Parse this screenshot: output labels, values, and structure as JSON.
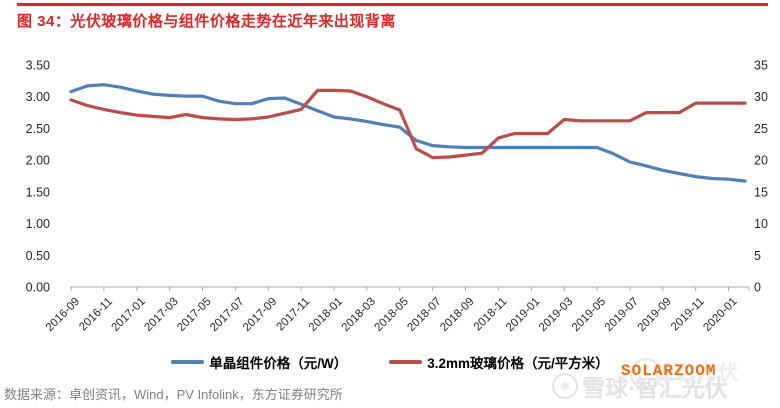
{
  "header": {
    "title": "图 34：光伏玻璃价格与组件价格走势在近年来出现背离",
    "accent_color": "#e62222"
  },
  "chart_data": {
    "type": "line",
    "grid": false,
    "legend_position": "bottom",
    "x": [
      "2016-09",
      "2016-10",
      "2016-11",
      "2016-12",
      "2017-01",
      "2017-02",
      "2017-03",
      "2017-04",
      "2017-05",
      "2017-06",
      "2017-07",
      "2017-08",
      "2017-09",
      "2017-10",
      "2017-11",
      "2017-12",
      "2018-01",
      "2018-02",
      "2018-03",
      "2018-04",
      "2018-05",
      "2018-06",
      "2018-07",
      "2018-08",
      "2018-09",
      "2018-10",
      "2018-11",
      "2018-12",
      "2019-01",
      "2019-02",
      "2019-03",
      "2019-04",
      "2019-05",
      "2019-06",
      "2019-07",
      "2019-08",
      "2019-09",
      "2019-10",
      "2019-11",
      "2019-12",
      "2020-01",
      "2020-02"
    ],
    "x_tick_labels": [
      "2016-09",
      "2016-11",
      "2017-01",
      "2017-03",
      "2017-05",
      "2017-07",
      "2017-09",
      "2017-11",
      "2018-01",
      "2018-03",
      "2018-05",
      "2018-07",
      "2018-09",
      "2018-11",
      "2019-01",
      "2019-03",
      "2019-05",
      "2019-07",
      "2019-09",
      "2019-11",
      "2020-01"
    ],
    "left_axis": {
      "min": 0,
      "max": 3.5,
      "ticks": [
        "0.00",
        "0.50",
        "1.00",
        "1.50",
        "2.00",
        "2.50",
        "3.00",
        "3.50"
      ]
    },
    "right_axis": {
      "min": 0,
      "max": 35,
      "ticks": [
        "0",
        "5",
        "10",
        "15",
        "20",
        "25",
        "30",
        "35"
      ]
    },
    "series": [
      {
        "name": "单晶组件价格（元/W）",
        "axis": "left",
        "unit": "元/W",
        "color": "#4e7fbe",
        "values": [
          3.08,
          3.17,
          3.19,
          3.15,
          3.09,
          3.04,
          3.02,
          3.01,
          3.01,
          2.93,
          2.89,
          2.89,
          2.97,
          2.98,
          2.88,
          2.78,
          2.68,
          2.65,
          2.61,
          2.56,
          2.52,
          2.31,
          2.23,
          2.21,
          2.2,
          2.2,
          2.2,
          2.2,
          2.2,
          2.2,
          2.2,
          2.2,
          2.2,
          2.1,
          1.97,
          1.91,
          1.84,
          1.79,
          1.74,
          1.71,
          1.7,
          1.67
        ]
      },
      {
        "name": "3.2mm玻璃价格（元/平方米）",
        "axis": "right",
        "unit": "元/平方米",
        "color": "#bf4b47",
        "values": [
          29.5,
          28.6,
          28.0,
          27.5,
          27.1,
          26.9,
          26.7,
          27.2,
          26.7,
          26.5,
          26.4,
          26.5,
          26.8,
          27.4,
          28.0,
          31.0,
          31.0,
          30.9,
          30.0,
          28.9,
          27.9,
          21.8,
          20.4,
          20.5,
          20.8,
          21.1,
          23.5,
          24.2,
          24.2,
          24.2,
          26.4,
          26.2,
          26.2,
          26.2,
          26.2,
          27.5,
          27.5,
          27.5,
          29.0,
          29.0,
          29.0,
          29.0
        ]
      }
    ]
  },
  "footer": {
    "source": "数据来源：卓创资讯，Wind，PV Infolink，东方证券研究所"
  },
  "watermarks": {
    "solarzoom": "SOLARZOOM",
    "solarzoom_color": "#ed6c0c",
    "ghost": "智汇光伏",
    "xueqiu": "雪球·智汇光伏",
    "logo_glyph": "❅"
  }
}
